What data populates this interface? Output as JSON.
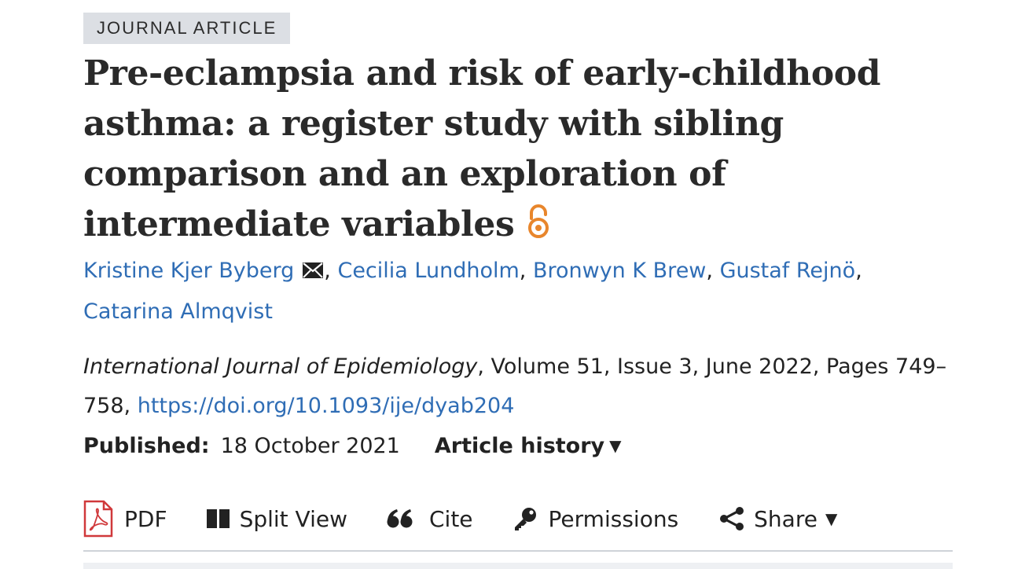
{
  "article_type": "JOURNAL ARTICLE",
  "title": "Pre-eclampsia and risk of early-childhood asthma: a register study with sibling comparison and an exploration of intermediate variables",
  "open_access_icon": "open-access-lock-icon",
  "authors": [
    {
      "name": "Kristine Kjer Byberg",
      "has_email": true
    },
    {
      "name": "Cecilia Lundholm"
    },
    {
      "name": "Bronwyn K Brew"
    },
    {
      "name": "Gustaf Rejnö"
    },
    {
      "name": "Catarina Almqvist"
    }
  ],
  "citation": {
    "journal": "International Journal of Epidemiology",
    "details": ", Volume 51, Issue 3, June 2022, Pages 749–758, ",
    "doi": "https://doi.org/10.1093/ije/dyab204"
  },
  "published": {
    "label": "Published:",
    "date": "18 October 2021",
    "history_label": "Article history",
    "history_caret": "▼"
  },
  "toolbar": {
    "pdf": "PDF",
    "split_view": "Split View",
    "cite": "Cite",
    "permissions": "Permissions",
    "share": "Share",
    "share_caret": "▼"
  },
  "colors": {
    "link": "#2f6db5",
    "open_access": "#e8862c",
    "pdf_icon": "#d0393b",
    "badge_bg": "#dcdfe4"
  }
}
